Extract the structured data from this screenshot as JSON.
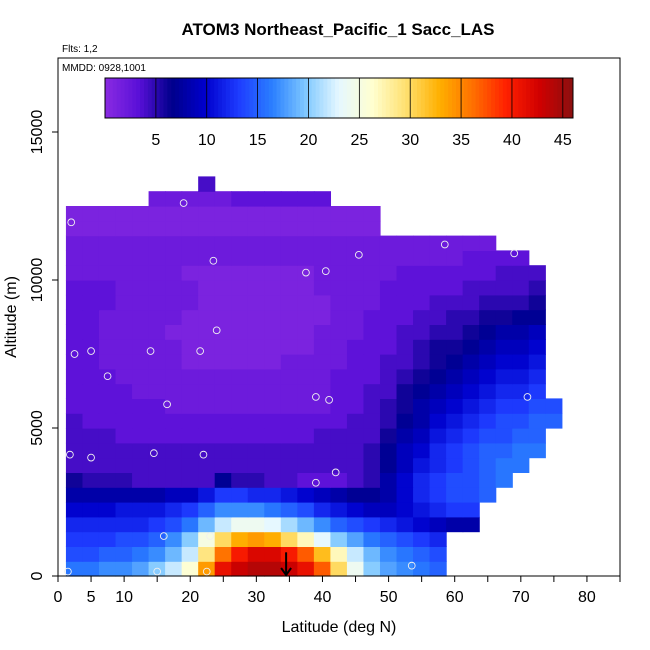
{
  "chart_data": {
    "type": "heatmap",
    "title": "ATOM3 Northeast_Pacific_1 Sacc_LAS",
    "flights_note": "Flts: 1,2",
    "dates_note": "MMDD: 0928,1001",
    "xlabel": "Latitude (deg N)",
    "ylabel": "Altitude (m)",
    "xlim": [
      0,
      85
    ],
    "ylim": [
      0,
      17500
    ],
    "x_ticks": [
      "0",
      "5",
      "10",
      "20",
      "30",
      "40",
      "50",
      "60",
      "70",
      "80"
    ],
    "y_ticks": [
      "0",
      "5000",
      "10000",
      "15000"
    ],
    "colorbar": {
      "range": [
        0,
        46
      ],
      "ticks": [
        "5",
        "10",
        "15",
        "20",
        "25",
        "30",
        "35",
        "40",
        "45"
      ],
      "colors": [
        "#8a2be2",
        "#5a10d8",
        "#00008b",
        "#0000cd",
        "#1e3cff",
        "#2a7fff",
        "#7fc8ff",
        "#e6f8ff",
        "#ffffd0",
        "#ffe070",
        "#ffb000",
        "#ff7000",
        "#ff2000",
        "#d00000",
        "#8b1010"
      ]
    },
    "lat_bins": [
      0,
      2.5,
      5,
      7.5,
      10,
      12.5,
      15,
      17.5,
      20,
      22.5,
      25,
      27.5,
      30,
      32.5,
      35,
      37.5,
      40,
      42.5,
      45,
      47.5,
      50,
      52.5,
      55,
      57.5,
      60,
      62.5,
      65,
      67.5,
      70,
      72.5
    ],
    "alt_bins": [
      0,
      500,
      1000,
      1500,
      2000,
      2500,
      3000,
      3500,
      4000,
      4500,
      5000,
      5500,
      6000,
      6500,
      7000,
      7500,
      8000,
      8500,
      9000,
      9500,
      10000,
      10500,
      11000,
      11500,
      12000,
      12500,
      13000
    ],
    "values": [
      [
        16,
        16,
        17,
        17,
        18,
        20,
        22,
        26,
        34,
        41,
        43,
        44,
        44,
        43,
        41,
        37,
        30,
        24,
        20,
        18,
        17,
        16,
        15,
        null,
        null,
        null,
        null,
        null,
        null,
        null
      ],
      [
        14,
        14,
        15,
        15,
        16,
        17,
        19,
        22,
        29,
        36,
        40,
        42,
        42,
        40,
        37,
        32,
        27,
        22,
        19,
        17,
        16,
        15,
        14,
        null,
        null,
        null,
        null,
        null,
        null,
        null
      ],
      [
        13,
        13,
        13,
        14,
        14,
        15,
        17,
        20,
        25,
        30,
        33,
        34,
        33,
        30,
        27,
        23,
        20,
        18,
        16,
        15,
        14,
        13,
        12,
        null,
        null,
        null,
        null,
        null,
        null,
        null
      ],
      [
        12,
        12,
        12,
        12,
        12,
        13,
        14,
        16,
        19,
        22,
        24,
        24,
        23,
        21,
        19,
        17,
        15,
        14,
        13,
        12,
        11,
        10,
        9,
        8,
        8,
        null,
        null,
        null,
        null,
        null
      ],
      [
        10,
        10,
        10,
        11,
        11,
        11,
        12,
        13,
        15,
        17,
        17,
        17,
        16,
        15,
        14,
        12,
        11,
        10,
        9,
        9,
        10,
        11,
        12,
        13,
        13,
        null,
        null,
        null,
        null,
        null
      ],
      [
        8,
        8,
        8,
        8,
        8,
        8,
        9,
        9,
        11,
        13,
        13,
        12,
        12,
        11,
        10,
        9,
        8,
        7,
        7,
        8,
        10,
        12,
        13,
        14,
        14,
        15,
        null,
        null,
        null,
        null
      ],
      [
        6,
        5,
        5,
        5,
        4,
        4,
        4,
        4,
        4,
        7,
        5,
        5,
        4,
        4,
        3,
        3,
        3,
        4,
        5,
        8,
        10,
        12,
        13,
        14,
        14,
        15,
        16,
        null,
        null,
        null
      ],
      [
        4,
        4,
        4,
        4,
        4,
        4,
        4,
        4,
        4,
        4,
        4,
        4,
        4,
        4,
        4,
        4,
        4,
        4,
        5,
        7,
        9,
        11,
        12,
        13,
        14,
        15,
        16,
        16,
        null,
        null
      ],
      [
        4,
        4,
        4,
        4,
        4,
        4,
        4,
        4,
        4,
        4,
        4,
        4,
        4,
        4,
        4,
        4,
        4,
        4,
        5,
        7,
        9,
        10,
        12,
        13,
        14,
        15,
        15,
        16,
        16,
        null
      ],
      [
        4,
        4,
        4,
        3,
        3,
        3,
        3,
        3,
        3,
        3,
        3,
        3,
        3,
        3,
        3,
        4,
        4,
        4,
        4,
        6,
        8,
        9,
        11,
        12,
        13,
        14,
        14,
        15,
        15,
        null
      ],
      [
        4,
        3,
        3,
        3,
        3,
        3,
        3,
        3,
        3,
        3,
        3,
        3,
        3,
        3,
        3,
        3,
        3,
        4,
        4,
        5,
        7,
        8,
        10,
        11,
        12,
        13,
        14,
        14,
        15,
        15
      ],
      [
        3,
        3,
        3,
        3,
        3,
        3,
        2,
        2,
        2,
        2,
        2,
        2,
        2,
        2,
        2,
        2,
        3,
        3,
        4,
        5,
        6,
        8,
        9,
        10,
        11,
        12,
        13,
        13,
        14,
        14
      ],
      [
        3,
        3,
        3,
        3,
        2,
        2,
        2,
        2,
        2,
        2,
        2,
        2,
        2,
        2,
        2,
        2,
        3,
        3,
        4,
        4,
        6,
        7,
        8,
        9,
        10,
        11,
        12,
        12,
        13,
        null
      ],
      [
        3,
        3,
        3,
        2,
        2,
        2,
        2,
        2,
        2,
        2,
        2,
        2,
        2,
        2,
        2,
        2,
        3,
        3,
        3,
        4,
        5,
        6,
        7,
        8,
        9,
        10,
        11,
        11,
        12,
        null
      ],
      [
        3,
        3,
        2,
        2,
        2,
        2,
        2,
        1,
        1,
        1,
        1,
        1,
        1,
        2,
        2,
        2,
        2,
        3,
        3,
        4,
        4,
        5,
        6,
        7,
        8,
        9,
        10,
        10,
        11,
        null
      ],
      [
        3,
        3,
        2,
        2,
        2,
        2,
        2,
        1,
        1,
        1,
        1,
        1,
        1,
        1,
        1,
        2,
        2,
        3,
        3,
        3,
        4,
        5,
        6,
        6,
        7,
        8,
        9,
        9,
        10,
        null
      ],
      [
        3,
        3,
        2,
        2,
        2,
        2,
        1,
        1,
        1,
        1,
        1,
        1,
        1,
        1,
        1,
        2,
        2,
        2,
        3,
        3,
        4,
        4,
        5,
        5,
        6,
        7,
        8,
        8,
        9,
        null
      ],
      [
        3,
        3,
        2,
        2,
        2,
        2,
        2,
        1,
        1,
        1,
        1,
        1,
        1,
        1,
        1,
        1,
        2,
        2,
        3,
        3,
        3,
        4,
        4,
        5,
        5,
        6,
        6,
        7,
        7,
        null
      ],
      [
        3,
        3,
        3,
        2,
        2,
        2,
        2,
        2,
        1,
        1,
        1,
        1,
        1,
        1,
        1,
        1,
        2,
        2,
        2,
        3,
        3,
        3,
        4,
        4,
        4,
        5,
        5,
        5,
        6,
        null
      ],
      [
        3,
        3,
        3,
        2,
        2,
        2,
        2,
        2,
        1,
        1,
        1,
        1,
        1,
        1,
        1,
        2,
        2,
        2,
        2,
        3,
        3,
        3,
        3,
        3,
        4,
        4,
        4,
        4,
        5,
        null
      ],
      [
        2,
        2,
        2,
        2,
        2,
        2,
        2,
        1,
        1,
        1,
        1,
        1,
        1,
        1,
        1,
        2,
        2,
        2,
        2,
        2,
        3,
        3,
        3,
        3,
        3,
        3,
        4,
        4,
        4,
        null
      ],
      [
        2,
        2,
        2,
        2,
        2,
        2,
        2,
        2,
        2,
        2,
        2,
        2,
        2,
        2,
        2,
        2,
        2,
        2,
        2,
        2,
        2,
        2,
        2,
        2,
        3,
        3,
        3,
        3,
        null,
        null
      ],
      [
        2,
        2,
        2,
        2,
        2,
        2,
        2,
        2,
        2,
        2,
        2,
        2,
        2,
        2,
        2,
        2,
        2,
        2,
        2,
        2,
        2,
        2,
        2,
        2,
        2,
        2,
        null,
        null,
        null,
        null
      ],
      [
        1,
        1,
        1,
        1,
        1,
        1,
        1,
        1,
        1,
        1,
        1,
        1,
        1,
        1,
        1,
        1,
        1,
        1,
        1,
        null,
        null,
        null,
        null,
        null,
        null,
        null,
        null,
        null,
        null,
        null
      ],
      [
        1,
        1,
        1,
        1,
        1,
        1,
        1,
        1,
        1,
        1,
        1,
        1,
        1,
        1,
        1,
        1,
        1,
        1,
        1,
        null,
        null,
        null,
        null,
        null,
        null,
        null,
        null,
        null,
        null,
        null
      ],
      [
        null,
        null,
        null,
        null,
        null,
        2,
        2,
        2,
        2,
        2,
        3,
        3,
        3,
        3,
        3,
        3,
        null,
        null,
        null,
        null,
        null,
        null,
        null,
        null,
        null,
        null,
        null,
        null,
        null,
        null
      ],
      [
        null,
        null,
        null,
        null,
        null,
        null,
        null,
        null,
        4,
        null,
        null,
        null,
        null,
        null,
        null,
        null,
        null,
        null,
        null,
        null,
        null,
        null,
        null,
        null,
        null,
        null,
        null,
        null,
        null,
        null
      ]
    ],
    "sample_points": [
      {
        "lat": 1.5,
        "alt": 150
      },
      {
        "lat": 15,
        "alt": 150
      },
      {
        "lat": 22.5,
        "alt": 150
      },
      {
        "lat": 16,
        "alt": 1350
      },
      {
        "lat": 23,
        "alt": 1350
      },
      {
        "lat": 53.5,
        "alt": 350
      },
      {
        "lat": 1.8,
        "alt": 4100
      },
      {
        "lat": 5,
        "alt": 4000
      },
      {
        "lat": 14.5,
        "alt": 4150
      },
      {
        "lat": 22,
        "alt": 4100
      },
      {
        "lat": 39,
        "alt": 3150
      },
      {
        "lat": 42,
        "alt": 3500
      },
      {
        "lat": 16.5,
        "alt": 5800
      },
      {
        "lat": 39,
        "alt": 6050
      },
      {
        "lat": 41,
        "alt": 5950
      },
      {
        "lat": 71,
        "alt": 6050
      },
      {
        "lat": 2.5,
        "alt": 7500
      },
      {
        "lat": 5,
        "alt": 7600
      },
      {
        "lat": 7.5,
        "alt": 6750
      },
      {
        "lat": 14,
        "alt": 7600
      },
      {
        "lat": 21.5,
        "alt": 7600
      },
      {
        "lat": 24,
        "alt": 8300
      },
      {
        "lat": 37.5,
        "alt": 10250
      },
      {
        "lat": 40.5,
        "alt": 10300
      },
      {
        "lat": 23.5,
        "alt": 10650
      },
      {
        "lat": 45.5,
        "alt": 10850
      },
      {
        "lat": 58.5,
        "alt": 11200
      },
      {
        "lat": 69,
        "alt": 10900
      },
      {
        "lat": 2,
        "alt": 11950
      },
      {
        "lat": 19,
        "alt": 12600
      }
    ],
    "marker": {
      "lat": 34.5,
      "alt_top": 800,
      "alt_bottom": 0
    },
    "grid": false,
    "legend_position": "top"
  }
}
